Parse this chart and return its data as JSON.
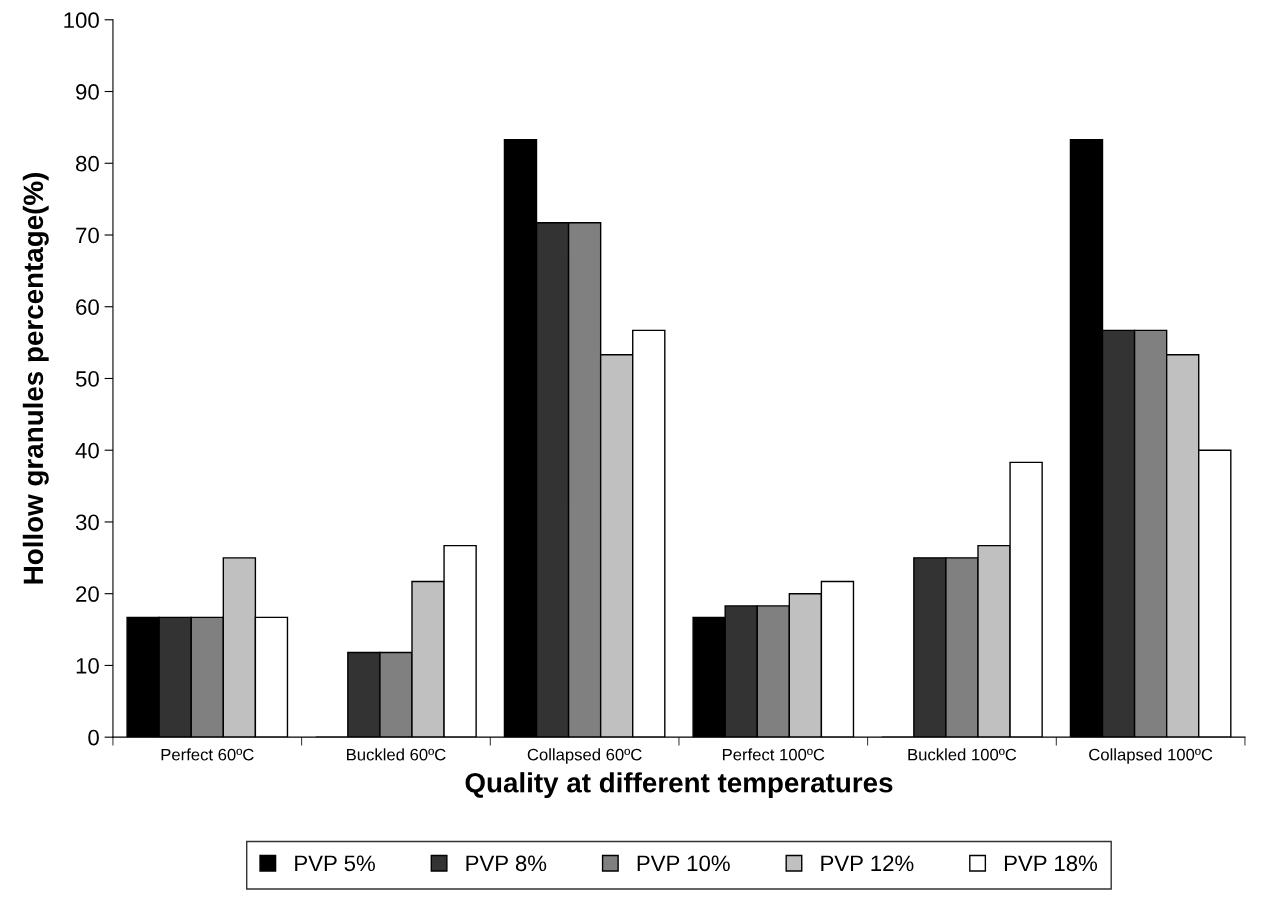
{
  "chart_data": {
    "type": "bar",
    "xlabel": "Quality at different temperatures",
    "ylabel": "Hollow granules percentage(%)",
    "categories": [
      "Perfect 60ºC",
      "Buckled 60ºC",
      "Collapsed 60ºC",
      "Perfect 100ºC",
      "Buckled 100ºC",
      "Collapsed 100ºC"
    ],
    "series": [
      {
        "name": "PVP 5%",
        "color": "#000000",
        "values": [
          16.7,
          0,
          83.3,
          16.7,
          0,
          83.3
        ]
      },
      {
        "name": "PVP 8%",
        "color": "#333333",
        "values": [
          16.7,
          11.8,
          71.7,
          18.3,
          25,
          56.7
        ]
      },
      {
        "name": "PVP 10%",
        "color": "#808080",
        "values": [
          16.7,
          11.8,
          71.7,
          18.3,
          25,
          56.7
        ]
      },
      {
        "name": "PVP 12%",
        "color": "#c0c0c0",
        "values": [
          25,
          21.7,
          53.3,
          20,
          26.7,
          53.3
        ]
      },
      {
        "name": "PVP 18%",
        "color": "#ffffff",
        "values": [
          16.7,
          26.7,
          56.7,
          21.7,
          38.3,
          40
        ]
      }
    ],
    "ylim": [
      0,
      100
    ],
    "yticks": [
      0,
      10,
      20,
      30,
      40,
      50,
      60,
      70,
      80,
      90,
      100
    ],
    "grid": false,
    "legend": "bottom"
  }
}
